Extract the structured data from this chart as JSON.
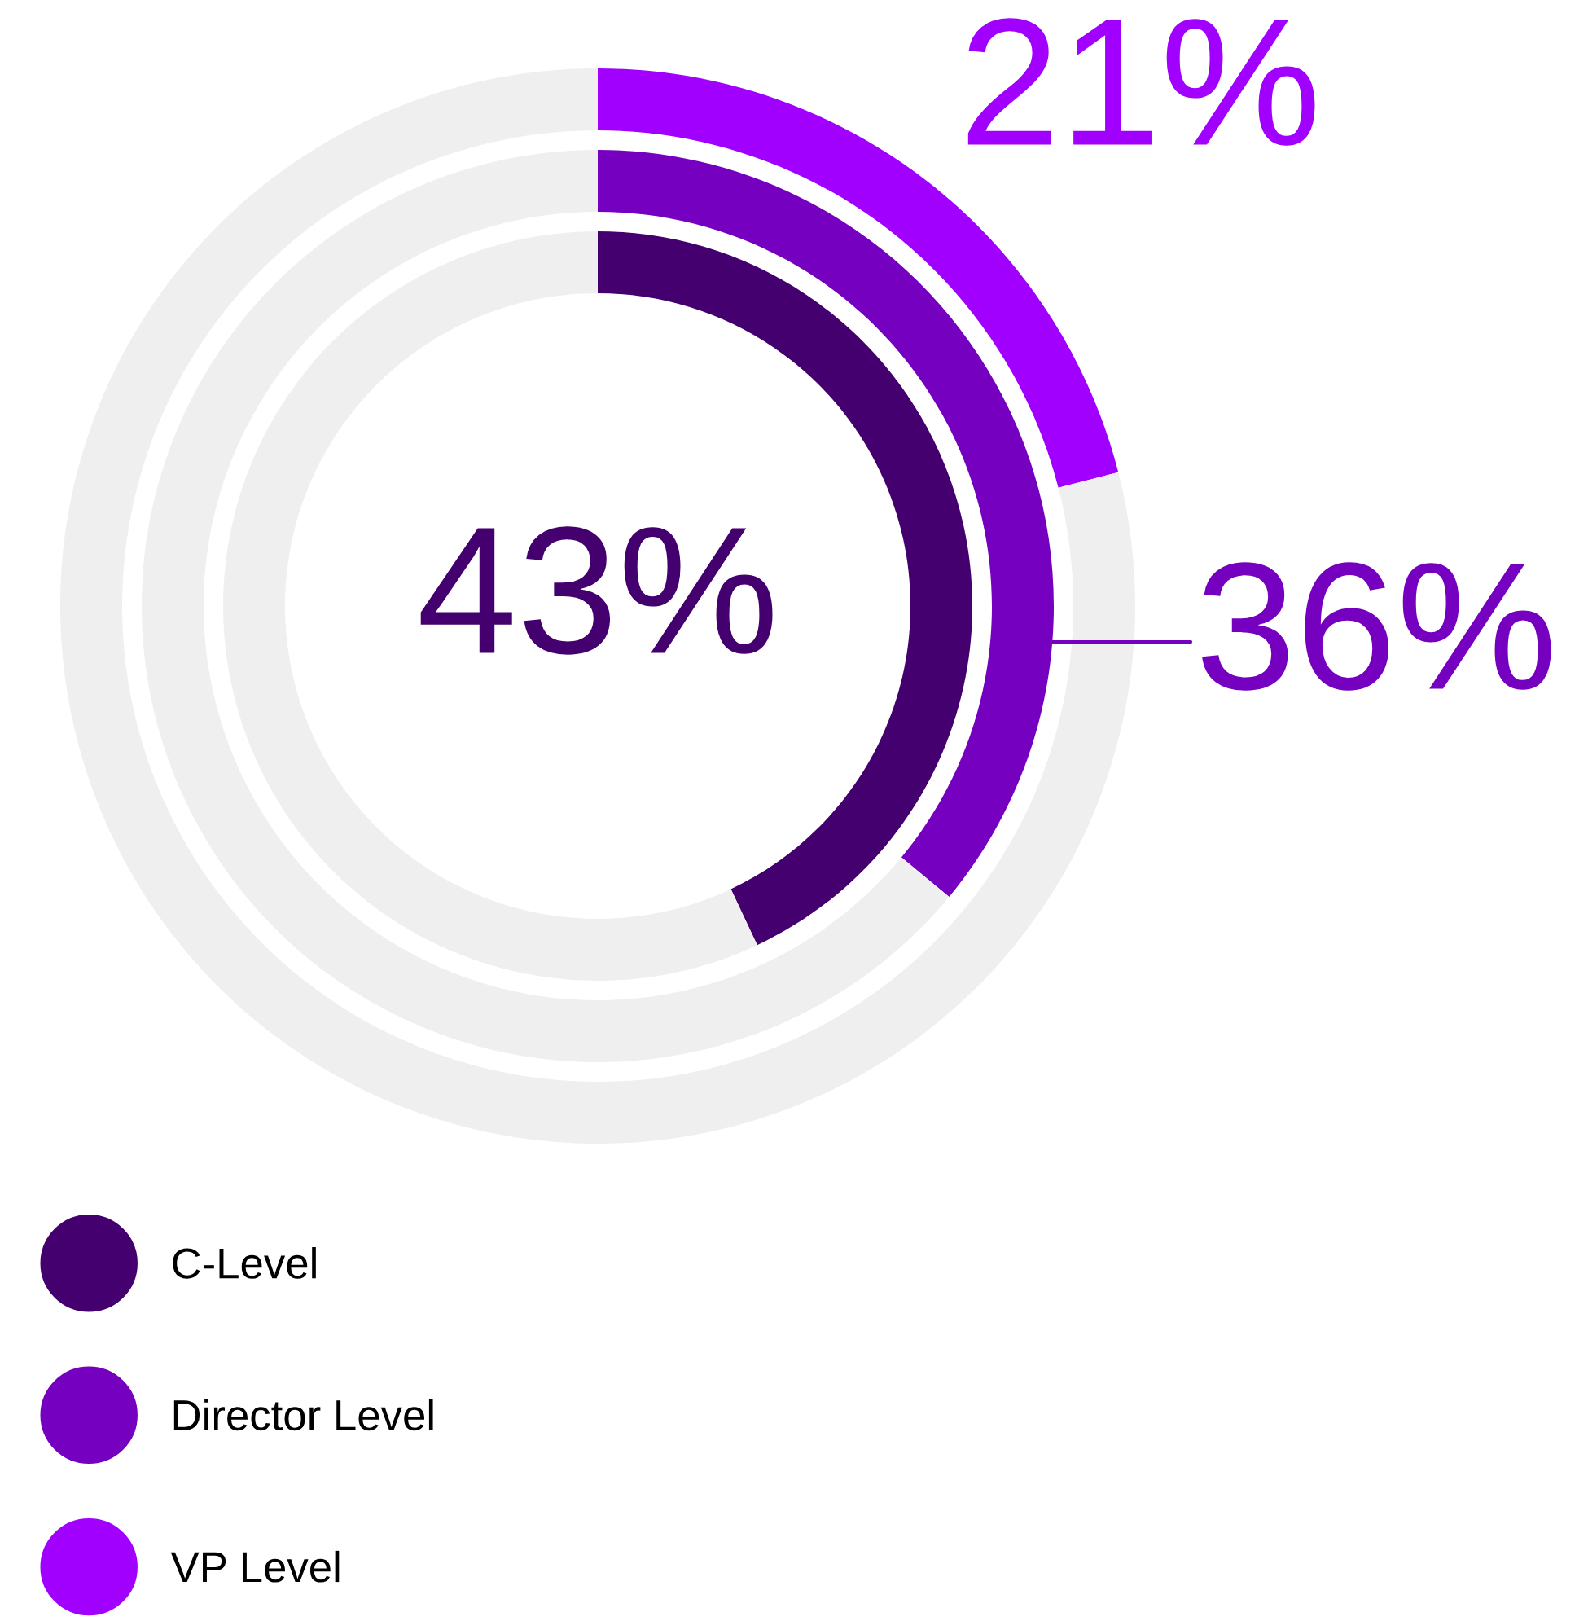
{
  "chart_data": {
    "type": "donut",
    "series": [
      {
        "name": "C-Level",
        "colors": [
          "#44006e",
          "#efefef"
        ],
        "values": [
          43,
          57
        ],
        "value_labels": [
          "43%",
          null
        ]
      },
      {
        "name": "Director Level",
        "colors": [
          "#7500c0",
          "#efefef"
        ],
        "values": [
          36,
          64
        ],
        "value_labels": [
          "36%",
          null
        ]
      },
      {
        "name": "VP Level",
        "colors": [
          "#a100ff",
          "#efefef"
        ],
        "values": [
          21,
          79
        ],
        "value_labels": [
          "21%",
          null
        ]
      }
    ],
    "legend": "bottom left"
  }
}
